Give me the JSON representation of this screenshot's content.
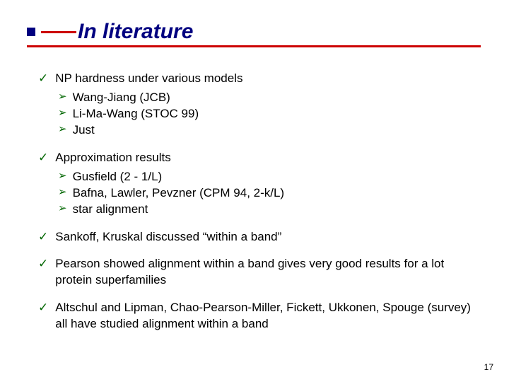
{
  "title": "In literature",
  "colors": {
    "title_color": "#000080",
    "accent_color": "#cc0000",
    "check_color": "#006600",
    "arrow_color": "#006600",
    "text_color": "#000000",
    "background": "#ffffff"
  },
  "typography": {
    "title_fontsize": 30,
    "title_family": "Arial",
    "title_weight": "bold",
    "title_style": "italic",
    "body_fontsize": 17,
    "body_family": "Comic Sans MS"
  },
  "bullets": [
    {
      "text": "NP hardness under various models",
      "subs": [
        "Wang-Jiang (JCB)",
        "Li-Ma-Wang (STOC 99)",
        "Just"
      ]
    },
    {
      "text": "Approximation results",
      "subs": [
        "Gusfield (2 - 1/L)",
        "Bafna, Lawler, Pevzner (CPM 94, 2-k/L)",
        "star alignment"
      ]
    },
    {
      "text": "Sankoff, Kruskal discussed “within a band”",
      "subs": []
    },
    {
      "text": "Pearson showed alignment within a band gives very good results for a lot protein superfamilies",
      "subs": []
    },
    {
      "text": "Altschul and Lipman, Chao-Pearson-Miller, Fickett, Ukkonen, Spouge (survey) all have studied alignment within a band",
      "subs": []
    }
  ],
  "page_number": "17"
}
